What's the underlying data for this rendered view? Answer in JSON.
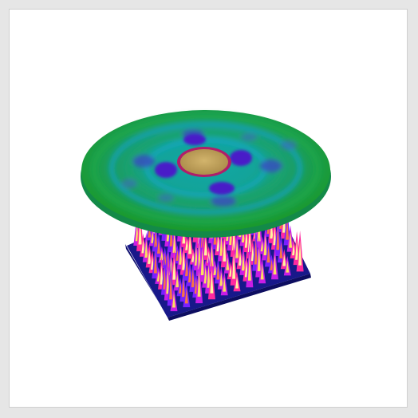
{
  "viewport": {
    "background_color": "#ffffff",
    "frame_color": "#e6e6e6"
  },
  "plate": {
    "top_color": "#18188a",
    "side_color": "#101070"
  },
  "spikes": {
    "rows": 13,
    "cols": 11,
    "colors": [
      "#7a20ff",
      "#c81ee6",
      "#ff2aa0",
      "#ff7a3a",
      "#ffe85a",
      "#ffffa0"
    ]
  },
  "disk": {
    "outer_color": "#1a9a2a",
    "mid_color": "#17a0a0",
    "inner_color": "#00b0b0",
    "lobe_color": "#4a1ec8",
    "center_color": "#c7a760",
    "center_ring_color": "#b01e6a"
  }
}
